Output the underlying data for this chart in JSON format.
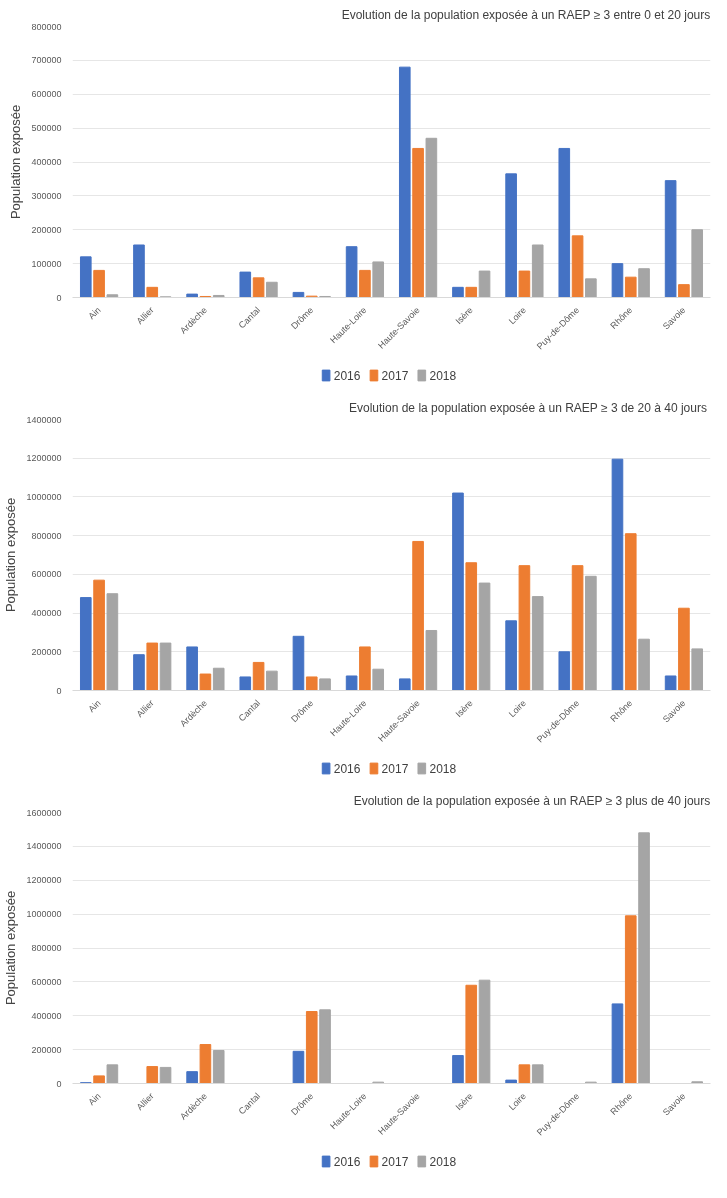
{
  "chart_data": [
    {
      "type": "bar",
      "title": "Evolution de la population exposée à un RAEP ≥ 3 entre 0 et 20 jours",
      "ylabel": "Population exposée",
      "categories": [
        "Ain",
        "Allier",
        "Ardèche",
        "Cantal",
        "Drôme",
        "Haute-Loire",
        "Haute-Savoie",
        "Isère",
        "Loire",
        "Puy-de-Dôme",
        "Rhône",
        "Savoie"
      ],
      "series": [
        {
          "name": "2016",
          "color": "#4472c4",
          "values": [
            120000,
            155000,
            10000,
            75000,
            15000,
            150000,
            680000,
            30000,
            365000,
            440000,
            100000,
            345000
          ]
        },
        {
          "name": "2017",
          "color": "#ed7d31",
          "values": [
            80000,
            30000,
            3000,
            58000,
            4000,
            80000,
            440000,
            30000,
            78000,
            182000,
            60000,
            38000
          ]
        },
        {
          "name": "2018",
          "color": "#a5a5a5",
          "values": [
            8000,
            2000,
            6000,
            45000,
            3000,
            105000,
            470000,
            78000,
            155000,
            55000,
            85000,
            200000
          ]
        }
      ],
      "ylim": [
        0,
        800000
      ],
      "yticks": [
        0,
        100000,
        200000,
        300000,
        400000,
        500000,
        600000,
        700000,
        800000
      ],
      "grid": "y",
      "legend": "bottom"
    },
    {
      "type": "bar",
      "title": "Evolution de la population exposée à un RAEP ≥ 3 de 20  à 40 jours",
      "ylabel": "Population exposée",
      "categories": [
        "Ain",
        "Allier",
        "Ardèche",
        "Cantal",
        "Drôme",
        "Haute-Loire",
        "Haute-Savoie",
        "Isère",
        "Loire",
        "Puy-de-Dôme",
        "Rhône",
        "Savoie"
      ],
      "series": [
        {
          "name": "2016",
          "color": "#4472c4",
          "values": [
            480000,
            185000,
            225000,
            70000,
            280000,
            75000,
            60000,
            1020000,
            360000,
            200000,
            1195000,
            75000
          ]
        },
        {
          "name": "2017",
          "color": "#ed7d31",
          "values": [
            570000,
            245000,
            85000,
            145000,
            70000,
            225000,
            770000,
            660000,
            645000,
            645000,
            810000,
            425000
          ]
        },
        {
          "name": "2018",
          "color": "#a5a5a5",
          "values": [
            500000,
            245000,
            115000,
            100000,
            60000,
            110000,
            310000,
            555000,
            485000,
            590000,
            265000,
            215000
          ]
        }
      ],
      "ylim": [
        0,
        1400000
      ],
      "yticks": [
        0,
        200000,
        400000,
        600000,
        800000,
        1000000,
        1200000,
        1400000
      ],
      "grid": "y",
      "legend": "bottom"
    },
    {
      "type": "bar",
      "title": "Evolution de la population exposée à un RAEP ≥ 3 plus de 40 jours",
      "ylabel": "Population exposée",
      "categories": [
        "Ain",
        "Allier",
        "Ardèche",
        "Cantal",
        "Drôme",
        "Haute-Loire",
        "Haute-Savoie",
        "Isère",
        "Loire",
        "Puy-de-Dôme",
        "Rhône",
        "Savoie"
      ],
      "series": [
        {
          "name": "2016",
          "color": "#4472c4",
          "values": [
            5000,
            0,
            70000,
            0,
            190000,
            0,
            0,
            165000,
            20000,
            0,
            470000,
            0
          ]
        },
        {
          "name": "2017",
          "color": "#ed7d31",
          "values": [
            45000,
            100000,
            230000,
            0,
            425000,
            0,
            0,
            580000,
            110000,
            0,
            990000,
            0
          ]
        },
        {
          "name": "2018",
          "color": "#a5a5a5",
          "values": [
            110000,
            95000,
            195000,
            0,
            435000,
            8000,
            0,
            610000,
            110000,
            8000,
            1480000,
            10000
          ]
        }
      ],
      "ylim": [
        0,
        1600000
      ],
      "yticks": [
        0,
        200000,
        400000,
        600000,
        800000,
        1000000,
        1200000,
        1400000,
        1600000
      ],
      "grid": "y",
      "legend": "bottom"
    }
  ]
}
